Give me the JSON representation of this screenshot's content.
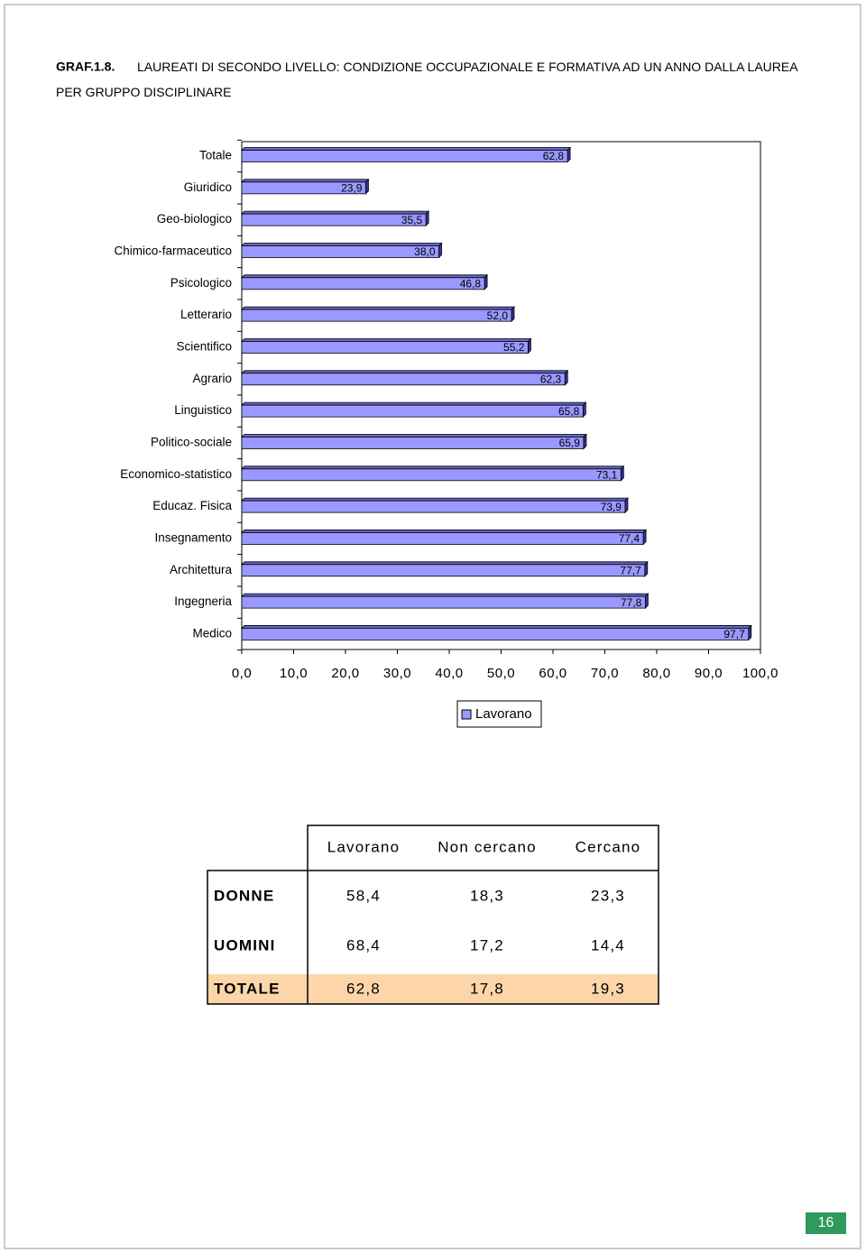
{
  "header": {
    "label": "GRAF.1.8.",
    "title": "LAUREATI DI SECONDO LIVELLO: CONDIZIONE OCCUPAZIONALE E FORMATIVA AD UN ANNO DALLA LAUREA PER GRUPPO DISCIPLINARE"
  },
  "chart_data": {
    "type": "bar",
    "orientation": "horizontal",
    "categories": [
      "Totale",
      "Giuridico",
      "Geo-biologico",
      "Chimico-farmaceutico",
      "Psicologico",
      "Letterario",
      "Scientifico",
      "Agrario",
      "Linguistico",
      "Politico-sociale",
      "Economico-statistico",
      "Educaz. Fisica",
      "Insegnamento",
      "Architettura",
      "Ingegneria",
      "Medico"
    ],
    "series": [
      {
        "name": "Lavorano",
        "color": "#9999ff",
        "values": [
          62.8,
          23.9,
          35.5,
          38.0,
          46.8,
          52.0,
          55.2,
          62.3,
          65.8,
          65.9,
          73.1,
          73.9,
          77.4,
          77.7,
          77.8,
          97.7
        ],
        "value_labels": [
          "62,8",
          "23,9",
          "35,5",
          "38,0",
          "46,8",
          "52,0",
          "55,2",
          "62,3",
          "65,8",
          "65,9",
          "73,1",
          "73,9",
          "77,4",
          "77,7",
          "77,8",
          "97,7"
        ]
      }
    ],
    "xlim": [
      0,
      100
    ],
    "xticks": [
      {
        "value": 0,
        "label": "0,0"
      },
      {
        "value": 10,
        "label": "10,0"
      },
      {
        "value": 20,
        "label": "20,0"
      },
      {
        "value": 30,
        "label": "30,0"
      },
      {
        "value": 40,
        "label": "40,0"
      },
      {
        "value": 50,
        "label": "50,0"
      },
      {
        "value": 60,
        "label": "60,0"
      },
      {
        "value": 70,
        "label": "70,0"
      },
      {
        "value": 80,
        "label": "80,0"
      },
      {
        "value": 90,
        "label": "90,0"
      },
      {
        "value": 100,
        "label": "100,0"
      }
    ]
  },
  "table": {
    "columns": [
      "Lavorano",
      "Non cercano",
      "Cercano"
    ],
    "rows": [
      [
        "DONNE",
        "58,4",
        "18,3",
        "23,3"
      ],
      [
        "UOMINI",
        "68,4",
        "17,2",
        "14,4"
      ],
      [
        "TOTALE",
        "62,8",
        "17,8",
        "19,3"
      ]
    ]
  },
  "page_number": "16"
}
